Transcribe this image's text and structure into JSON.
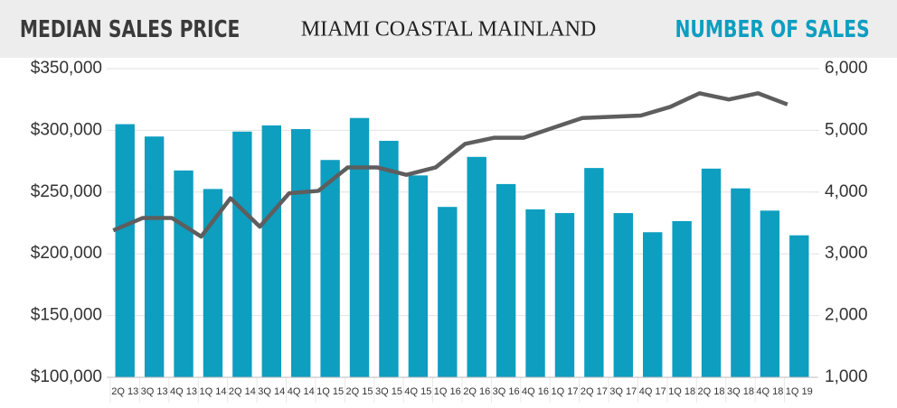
{
  "chart_data": {
    "type": "bar",
    "title": "MIAMI COASTAL MAINLAND",
    "categories": [
      "2Q 13",
      "3Q 13",
      "4Q 13",
      "1Q 14",
      "2Q 14",
      "3Q 14",
      "4Q 14",
      "1Q 15",
      "2Q 15",
      "3Q 15",
      "4Q 15",
      "1Q 16",
      "2Q 16",
      "3Q 16",
      "4Q 16",
      "1Q 17",
      "2Q 17",
      "3Q 17",
      "4Q 17",
      "1Q 18",
      "2Q 18",
      "3Q 18",
      "4Q 18",
      "1Q 19"
    ],
    "series": [
      {
        "name": "NUMBER OF SALES",
        "type": "bar",
        "axis": "y2",
        "color": "#0e9ec0",
        "values": [
          5100,
          4900,
          4350,
          4050,
          4980,
          5080,
          5020,
          4520,
          5200,
          4830,
          4270,
          3760,
          4570,
          4130,
          3720,
          3660,
          4390,
          3660,
          3350,
          3530,
          4380,
          4060,
          3700,
          3300
        ]
      },
      {
        "name": "MEDIAN SALES PRICE",
        "type": "line",
        "axis": "y",
        "color": "#5e5e5e",
        "values": [
          219000,
          229000,
          229000,
          214000,
          245000,
          222000,
          249000,
          251000,
          270000,
          270000,
          264000,
          270000,
          289000,
          294000,
          294000,
          302000,
          310000,
          311000,
          312000,
          319000,
          330000,
          325000,
          330000,
          321000
        ]
      }
    ],
    "ylim": [
      100000,
      350000
    ],
    "yticks": [
      {
        "value": 100000,
        "label": "$100,000"
      },
      {
        "value": 150000,
        "label": "$150,000"
      },
      {
        "value": 200000,
        "label": "$200,000"
      },
      {
        "value": 250000,
        "label": "$250,000"
      },
      {
        "value": 300000,
        "label": "$300,000"
      },
      {
        "value": 350000,
        "label": "$350,000"
      }
    ],
    "y2lim": [
      1000,
      6000
    ],
    "y2ticks": [
      {
        "value": 1000,
        "label": "1,000"
      },
      {
        "value": 2000,
        "label": "2,000"
      },
      {
        "value": 3000,
        "label": "3,000"
      },
      {
        "value": 4000,
        "label": "4,000"
      },
      {
        "value": 5000,
        "label": "5,000"
      },
      {
        "value": 6000,
        "label": "6,000"
      }
    ],
    "grid": true
  }
}
